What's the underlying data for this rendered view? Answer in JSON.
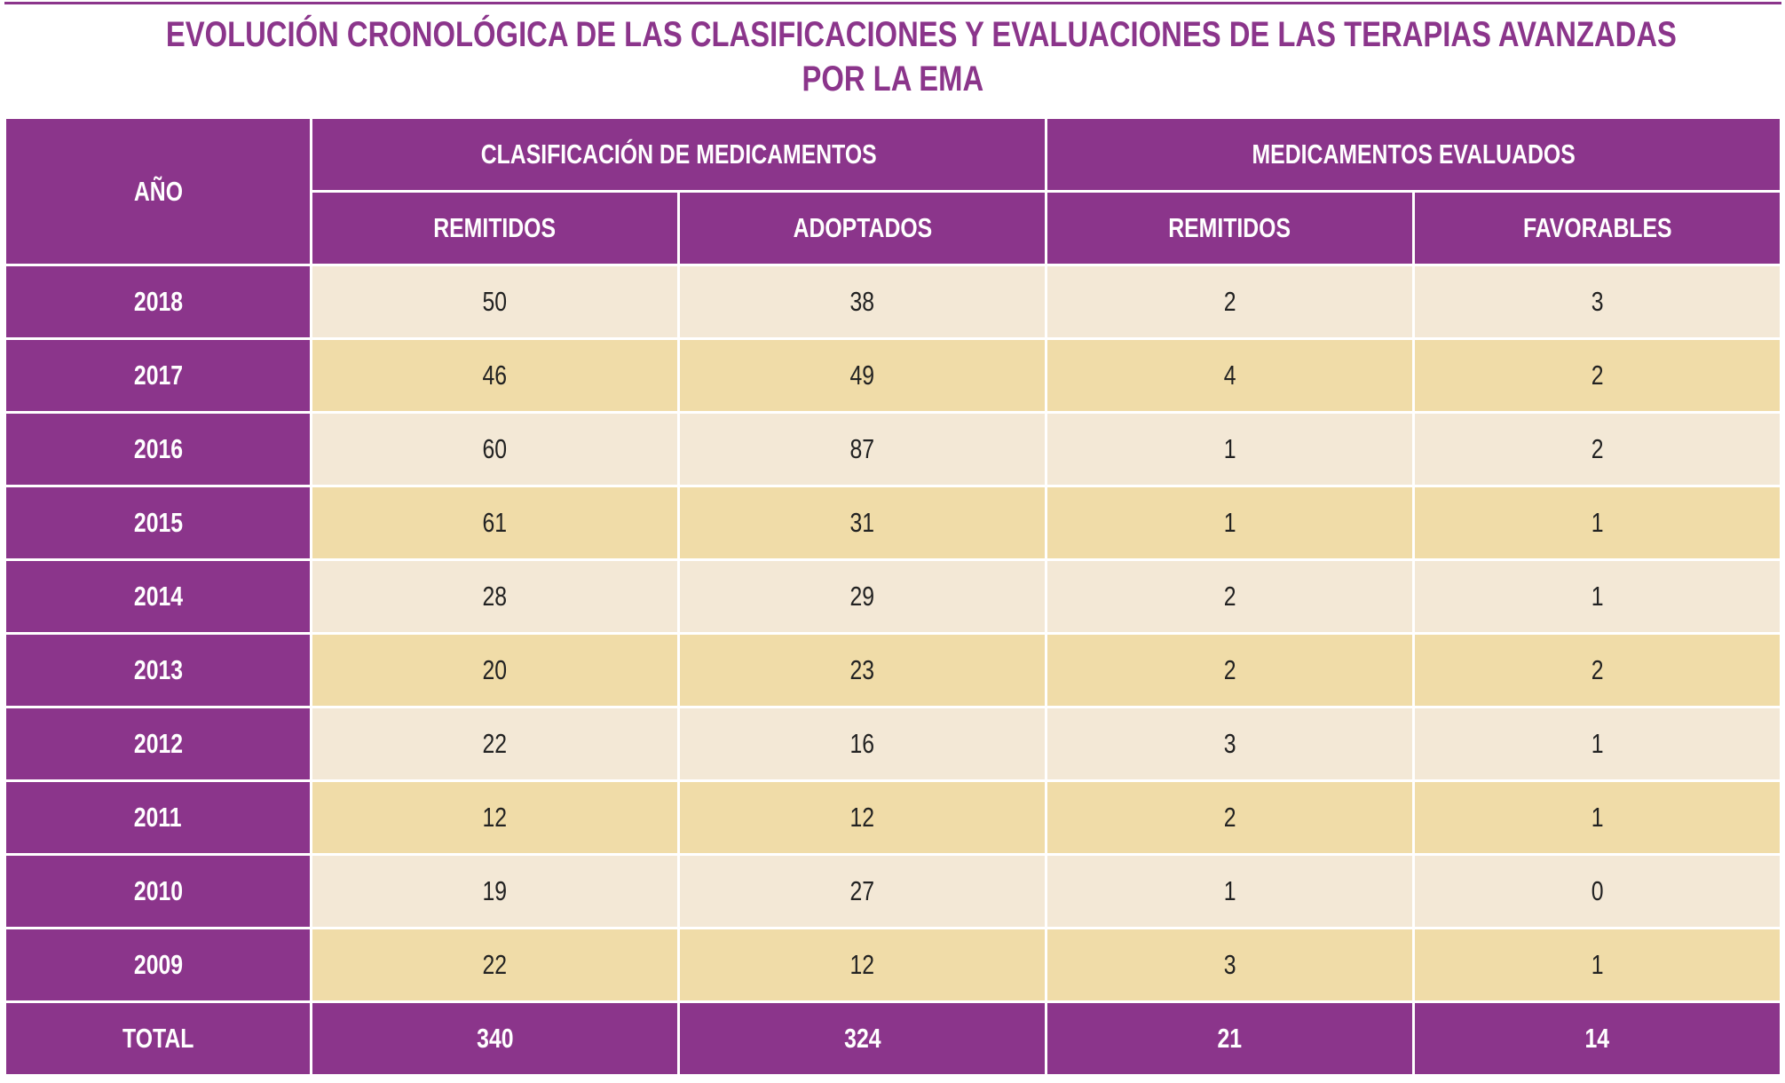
{
  "title": {
    "line1": "EVOLUCIÓN CRONOLÓGICA DE LAS CLASIFICACIONES Y EVALUACIONES DE LAS TERAPIAS AVANZADAS",
    "line2": "POR LA EMA"
  },
  "header": {
    "year": "AÑO",
    "group1": "CLASIFICACIÓN DE MEDICAMENTOS",
    "group2": "MEDICAMENTOS EVALUADOS",
    "cols": [
      "REMITIDOS",
      "ADOPTADOS",
      "REMITIDOS",
      "FAVORABLES"
    ]
  },
  "rows": [
    {
      "year": "2018",
      "v": [
        "50",
        "38",
        "2",
        "3"
      ]
    },
    {
      "year": "2017",
      "v": [
        "46",
        "49",
        "4",
        "2"
      ]
    },
    {
      "year": "2016",
      "v": [
        "60",
        "87",
        "1",
        "2"
      ]
    },
    {
      "year": "2015",
      "v": [
        "61",
        "31",
        "1",
        "1"
      ]
    },
    {
      "year": "2014",
      "v": [
        "28",
        "29",
        "2",
        "1"
      ]
    },
    {
      "year": "2013",
      "v": [
        "20",
        "23",
        "2",
        "2"
      ]
    },
    {
      "year": "2012",
      "v": [
        "22",
        "16",
        "3",
        "1"
      ]
    },
    {
      "year": "2011",
      "v": [
        "12",
        "12",
        "2",
        "1"
      ]
    },
    {
      "year": "2010",
      "v": [
        "19",
        "27",
        "1",
        "0"
      ]
    },
    {
      "year": "2009",
      "v": [
        "22",
        "12",
        "3",
        "1"
      ]
    }
  ],
  "total": {
    "label": "TOTAL",
    "v": [
      "340",
      "324",
      "21",
      "14"
    ]
  },
  "colors": {
    "purple": "#8b358b",
    "row_light": "#f3e8d6",
    "row_dark": "#f0dca8"
  }
}
